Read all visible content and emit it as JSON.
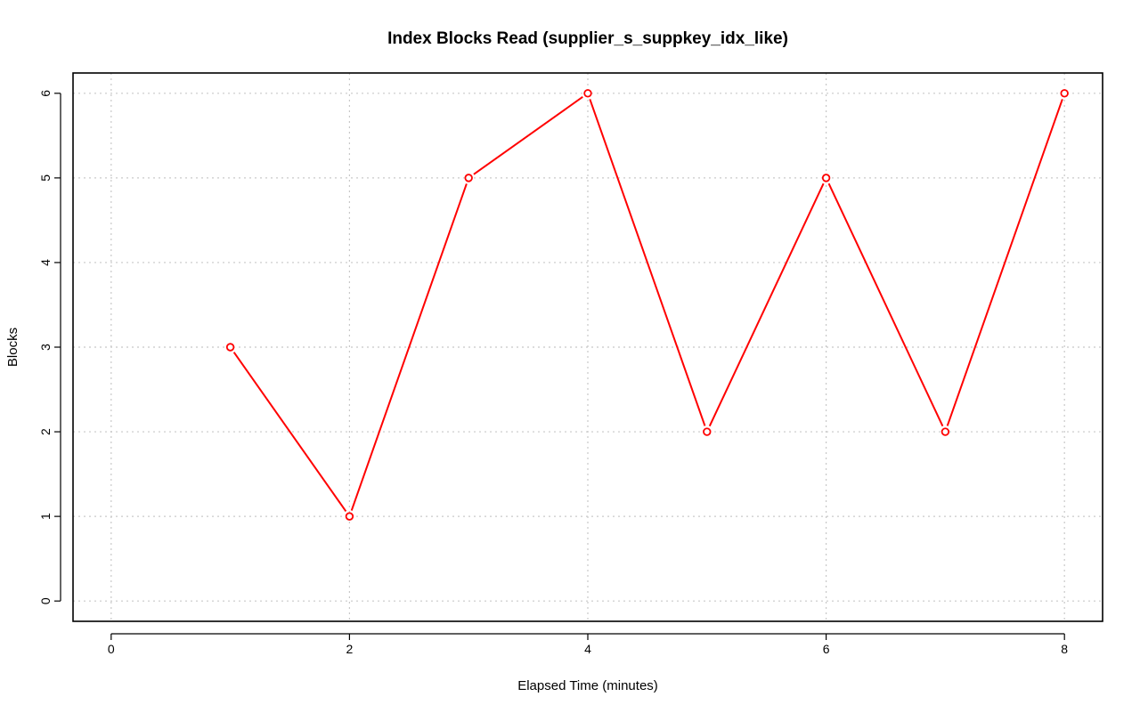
{
  "chart_data": {
    "type": "line",
    "title": "Index Blocks Read (supplier_s_suppkey_idx_like)",
    "xlabel": "Elapsed Time (minutes)",
    "ylabel": "Blocks",
    "x_ticks": [
      0,
      2,
      4,
      6,
      8
    ],
    "y_ticks": [
      0,
      1,
      2,
      3,
      4,
      5,
      6
    ],
    "xlim": [
      -0.32,
      8.32
    ],
    "ylim": [
      -0.24,
      6.24
    ],
    "grid": true,
    "legend": "none",
    "series": [
      {
        "color": "#ff0000",
        "x": [
          1,
          2,
          3,
          4,
          5,
          6,
          7,
          8
        ],
        "y": [
          3,
          1,
          5,
          6,
          2,
          5,
          2,
          6
        ]
      }
    ]
  }
}
